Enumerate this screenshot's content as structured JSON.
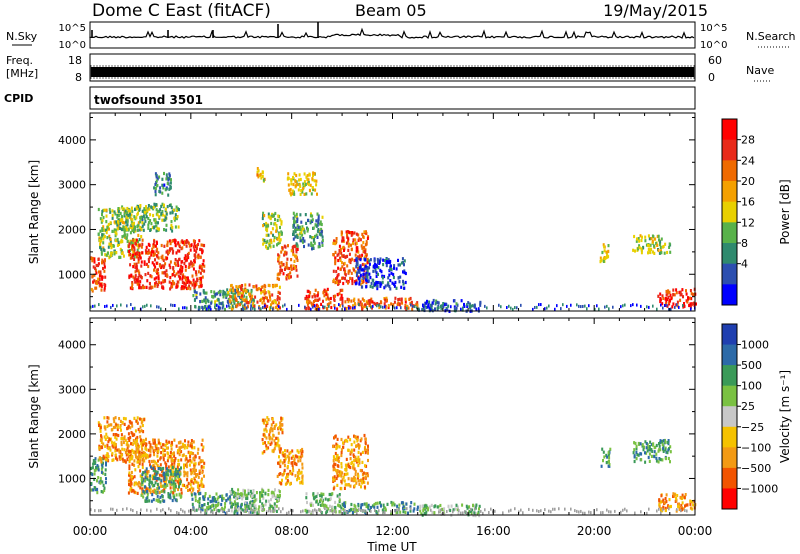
{
  "header": {
    "station": "Dome C East (fitACF)",
    "beam": "Beam 05",
    "date": "19/May/2015"
  },
  "meta_panel": {
    "nsky_label": "N.Sky",
    "nsky_ticks": [
      "10^5",
      "10^0"
    ],
    "nsearch_label": "N.Search",
    "nsearch_ticks": [
      "10^5",
      "10^0"
    ],
    "freq_label": "Freq.",
    "freq_unit": "[MHz]",
    "freq_ticks": [
      "18",
      "8"
    ],
    "nave_label": "Nave",
    "nave_ticks": [
      "60",
      "0"
    ],
    "cpid_label": "CPID",
    "cpid_value": "twofsound 3501"
  },
  "colors": {
    "power": [
      "#0000ff",
      "#2c4fb0",
      "#2f8a6e",
      "#58b24a",
      "#e8d000",
      "#f4a000",
      "#ef6a00",
      "#e82a1a",
      "#ff0000"
    ],
    "velocity": [
      "#ff0000",
      "#f25400",
      "#f39a14",
      "#f5c200",
      "#c8c8c8",
      "#7ac142",
      "#3a9a58",
      "#2c6aa8",
      "#1f3fb0"
    ]
  },
  "chart_data": [
    {
      "type": "heatmap",
      "name": "power",
      "ylabel": "Slant Range [km]",
      "xlabel": "",
      "x_ticks": [
        "00:00",
        "04:00",
        "08:00",
        "12:00",
        "16:00",
        "20:00",
        "00:00"
      ],
      "xlim": [
        0,
        24
      ],
      "ylim": [
        180,
        4600
      ],
      "y_ticks": [
        1000,
        2000,
        3000,
        4000
      ],
      "colorbar": {
        "label": "Power [dB]",
        "ticks": [
          "28",
          "24",
          "20",
          "16",
          "12",
          "8",
          "4"
        ],
        "range": [
          0,
          32
        ]
      },
      "regions": [
        {
          "x": [
            0.0,
            0.6
          ],
          "y": [
            600,
            1400
          ],
          "v": 26
        },
        {
          "x": [
            0.3,
            2.0
          ],
          "y": [
            1400,
            2500
          ],
          "v": 14
        },
        {
          "x": [
            1.5,
            4.5
          ],
          "y": [
            700,
            1800
          ],
          "v": 27
        },
        {
          "x": [
            1.0,
            3.5
          ],
          "y": [
            2000,
            2600
          ],
          "v": 12
        },
        {
          "x": [
            2.5,
            3.2
          ],
          "y": [
            2800,
            3300
          ],
          "v": 8
        },
        {
          "x": [
            4.0,
            6.5
          ],
          "y": [
            250,
            700
          ],
          "v": 10
        },
        {
          "x": [
            5.5,
            7.5
          ],
          "y": [
            250,
            800
          ],
          "v": 22
        },
        {
          "x": [
            6.6,
            7.0
          ],
          "y": [
            3100,
            3400
          ],
          "v": 18
        },
        {
          "x": [
            6.8,
            7.6
          ],
          "y": [
            1600,
            2400
          ],
          "v": 14
        },
        {
          "x": [
            7.4,
            8.2
          ],
          "y": [
            900,
            1700
          ],
          "v": 24
        },
        {
          "x": [
            7.8,
            9.0
          ],
          "y": [
            2800,
            3300
          ],
          "v": 16
        },
        {
          "x": [
            8.0,
            9.2
          ],
          "y": [
            1600,
            2400
          ],
          "v": 10
        },
        {
          "x": [
            8.5,
            10.0
          ],
          "y": [
            250,
            700
          ],
          "v": 26
        },
        {
          "x": [
            9.6,
            11.0
          ],
          "y": [
            800,
            2000
          ],
          "v": 25
        },
        {
          "x": [
            10.0,
            13.0
          ],
          "y": [
            250,
            500
          ],
          "v": 24
        },
        {
          "x": [
            10.5,
            12.5
          ],
          "y": [
            700,
            1400
          ],
          "v": 4
        },
        {
          "x": [
            13.0,
            15.5
          ],
          "y": [
            200,
            450
          ],
          "v": 6
        },
        {
          "x": [
            20.2,
            20.6
          ],
          "y": [
            1300,
            1700
          ],
          "v": 16
        },
        {
          "x": [
            21.5,
            23.0
          ],
          "y": [
            1500,
            1900
          ],
          "v": 14
        },
        {
          "x": [
            22.5,
            24.0
          ],
          "y": [
            300,
            700
          ],
          "v": 27
        }
      ]
    },
    {
      "type": "heatmap",
      "name": "velocity",
      "ylabel": "Slant Range [km]",
      "xlabel": "Time UT",
      "x_ticks": [
        "00:00",
        "04:00",
        "08:00",
        "12:00",
        "16:00",
        "20:00",
        "00:00"
      ],
      "xlim": [
        0,
        24
      ],
      "ylim": [
        180,
        4600
      ],
      "y_ticks": [
        1000,
        2000,
        3000,
        4000
      ],
      "colorbar": {
        "label": "Velocity [m s⁻¹]",
        "ticks": [
          "1000",
          "500",
          "100",
          "25",
          "−25",
          "−100",
          "−500",
          "−1000"
        ]
      },
      "regions": [
        {
          "x": [
            0.0,
            0.6
          ],
          "y": [
            700,
            1500
          ],
          "v": 6
        },
        {
          "x": [
            0.3,
            2.2
          ],
          "y": [
            1400,
            2400
          ],
          "v": 2
        },
        {
          "x": [
            1.5,
            4.5
          ],
          "y": [
            700,
            1900
          ],
          "v": 2
        },
        {
          "x": [
            2.0,
            3.6
          ],
          "y": [
            500,
            1300
          ],
          "v": 6
        },
        {
          "x": [
            4.0,
            6.5
          ],
          "y": [
            250,
            700
          ],
          "v": 6
        },
        {
          "x": [
            5.5,
            7.5
          ],
          "y": [
            250,
            800
          ],
          "v": 5
        },
        {
          "x": [
            6.8,
            7.6
          ],
          "y": [
            1600,
            2400
          ],
          "v": 2
        },
        {
          "x": [
            7.4,
            8.4
          ],
          "y": [
            900,
            1700
          ],
          "v": 2
        },
        {
          "x": [
            8.5,
            10.0
          ],
          "y": [
            250,
            700
          ],
          "v": 5
        },
        {
          "x": [
            9.6,
            11.0
          ],
          "y": [
            800,
            2000
          ],
          "v": 2
        },
        {
          "x": [
            10.0,
            13.0
          ],
          "y": [
            250,
            500
          ],
          "v": 6
        },
        {
          "x": [
            13.0,
            15.5
          ],
          "y": [
            200,
            450
          ],
          "v": 5
        },
        {
          "x": [
            20.2,
            20.6
          ],
          "y": [
            1300,
            1700
          ],
          "v": 6
        },
        {
          "x": [
            21.5,
            23.0
          ],
          "y": [
            1400,
            1900
          ],
          "v": 6
        },
        {
          "x": [
            22.5,
            24.0
          ],
          "y": [
            300,
            700
          ],
          "v": 2
        }
      ]
    }
  ]
}
